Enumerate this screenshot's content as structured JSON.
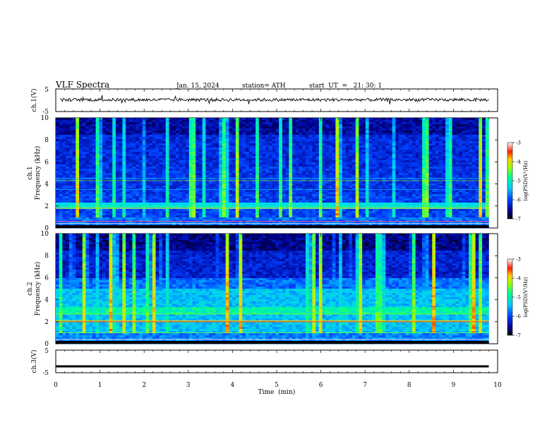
{
  "header": {
    "title": "VLF  Spectra",
    "date": "Jan. 15, 2024",
    "station": "station= ATH",
    "start_ut": "start  UT  =   21: 30: 1"
  },
  "chart_data": [
    {
      "id": "ch1-waveform",
      "type": "line",
      "ylabel": "ch.1(V)",
      "ylim": [
        -5,
        5
      ],
      "yticks": [
        "5",
        "-5"
      ],
      "xlim": [
        0,
        10
      ],
      "mean_level": 0.2
    },
    {
      "id": "ch1-spectrogram",
      "type": "heatmap",
      "ylabel": "ch.1\nFrequency  (kHz)",
      "ylim": [
        0,
        10
      ],
      "yticks": [
        "0",
        "2",
        "4",
        "6",
        "8",
        "10"
      ],
      "xlim": [
        0,
        10
      ],
      "colorbar": {
        "label": "log(PSD)(V²/Hz)",
        "range": [
          -7,
          -3
        ],
        "ticks": [
          "-3",
          "-4",
          "-5",
          "-6",
          "-7"
        ]
      }
    },
    {
      "id": "ch2-spectrogram",
      "type": "heatmap",
      "ylabel": "ch.2\nFrequency  (kHz)",
      "ylim": [
        0,
        10
      ],
      "yticks": [
        "0",
        "2",
        "4",
        "6",
        "8",
        "10"
      ],
      "xlim": [
        0,
        10
      ],
      "colorbar": {
        "label": "log(PSD)(V²/Hz)",
        "range": [
          -7,
          -3
        ],
        "ticks": [
          "-3",
          "-4",
          "-5",
          "-6",
          "-7"
        ]
      }
    },
    {
      "id": "ch3-waveform",
      "type": "line",
      "ylabel": "ch.3(V)",
      "ylim": [
        -5,
        5
      ],
      "yticks": [
        "5",
        "-5"
      ],
      "xlim": [
        0,
        10
      ],
      "xticks": [
        "0",
        "1",
        "2",
        "3",
        "4",
        "5",
        "6",
        "7",
        "8",
        "9",
        "10"
      ],
      "xlabel": "Time  (min)",
      "mean_level": -2.2
    }
  ],
  "data_end_min": 9.8
}
